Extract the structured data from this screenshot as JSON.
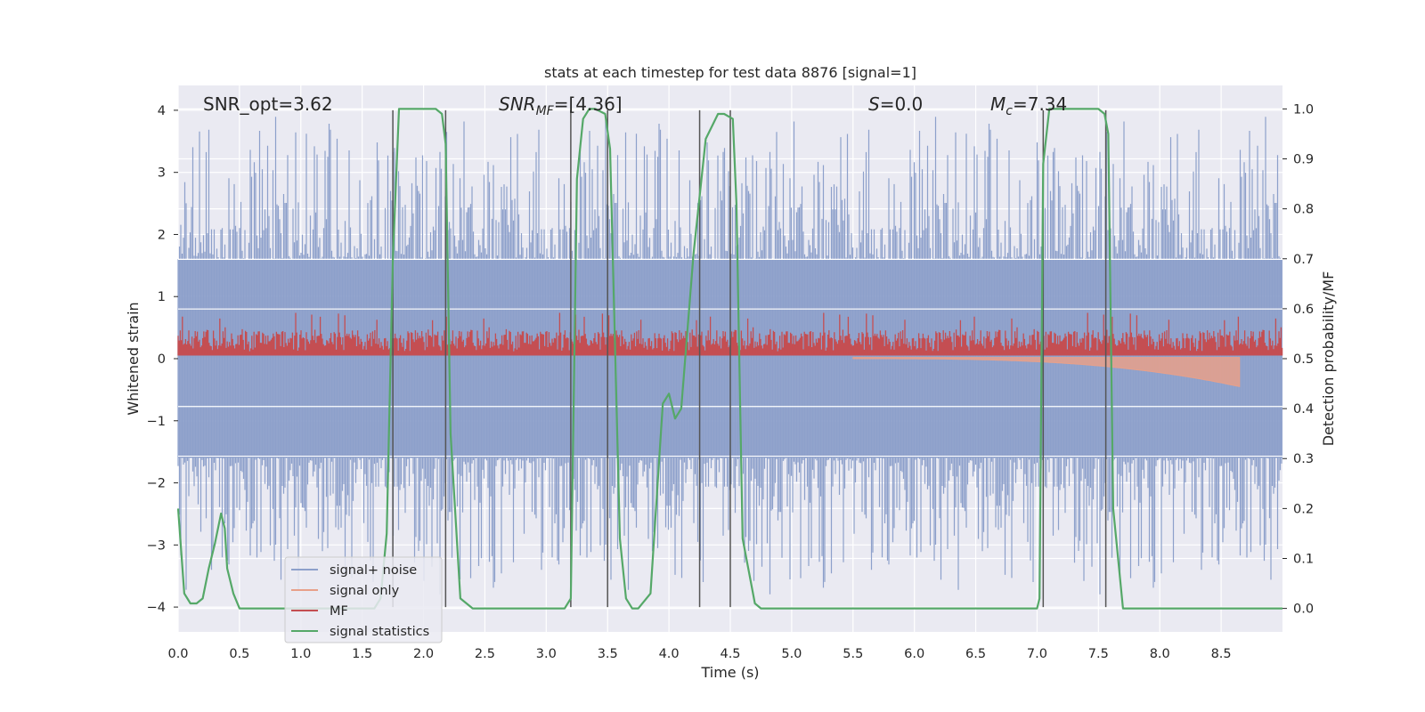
{
  "chart_data": {
    "type": "line",
    "title": "stats at each timestep for test data 8876 [signal=1]",
    "xlabel": "Time (s)",
    "ylabel_left": "Whitened strain",
    "ylabel_right": "Detection probability/MF",
    "xlim": [
      0.0,
      9.0
    ],
    "ylim_left": [
      -4.4,
      4.4
    ],
    "ylim_right": [
      -0.047,
      1.047
    ],
    "x_ticks": [
      0.0,
      0.5,
      1.0,
      1.5,
      2.0,
      2.5,
      3.0,
      3.5,
      4.0,
      4.5,
      5.0,
      5.5,
      6.0,
      6.5,
      7.0,
      7.5,
      8.0,
      8.5
    ],
    "x_tick_labels": [
      "0.0",
      "0.5",
      "1.0",
      "1.5",
      "2.0",
      "2.5",
      "3.0",
      "3.5",
      "4.0",
      "4.5",
      "5.0",
      "5.5",
      "6.0",
      "6.5",
      "7.0",
      "7.5",
      "8.0",
      "8.5"
    ],
    "y_left_ticks": [
      -4,
      -3,
      -2,
      -1,
      0,
      1,
      2,
      3,
      4
    ],
    "y_left_tick_labels": [
      "−4",
      "−3",
      "−2",
      "−1",
      "0",
      "1",
      "2",
      "3",
      "4"
    ],
    "y_right_ticks": [
      0.0,
      0.1,
      0.2,
      0.3,
      0.4,
      0.5,
      0.6,
      0.7,
      0.8,
      0.9,
      1.0
    ],
    "y_right_tick_labels": [
      "0.0",
      "0.1",
      "0.2",
      "0.3",
      "0.4",
      "0.5",
      "0.6",
      "0.7",
      "0.8",
      "0.9",
      "1.0"
    ],
    "grid": true,
    "legend_position": "lower-left",
    "annotations": {
      "snr_opt": "SNR_opt=3.62",
      "snr_mf_prefix": "SNR",
      "snr_mf_sub": "MF",
      "snr_mf_value": "=[4.36]",
      "s_prefix": "S",
      "s_value": "=0.0",
      "mc_prefix": "M",
      "mc_sub": "c",
      "mc_value": "=7.34"
    },
    "series": [
      {
        "name": "signal+ noise",
        "color": "#8da0cb",
        "description": "noise band approx ±1.6 with spikes to ±4"
      },
      {
        "name": "signal only",
        "color": "#e8a08a",
        "chirp_start": 5.5,
        "chirp_end": 8.65,
        "max_amplitude": -0.45
      },
      {
        "name": "MF",
        "color": "#c44e52",
        "baseline_range": [
          0.05,
          0.55
        ]
      },
      {
        "name": "signal statistics",
        "color": "#55a868",
        "x": [
          0.0,
          0.05,
          0.1,
          0.15,
          0.2,
          0.25,
          0.3,
          0.35,
          0.38,
          0.4,
          0.45,
          0.5,
          1.6,
          1.65,
          1.7,
          1.75,
          1.8,
          2.1,
          2.15,
          2.18,
          2.22,
          2.3,
          2.4,
          3.15,
          3.2,
          3.25,
          3.3,
          3.35,
          3.4,
          3.48,
          3.52,
          3.6,
          3.65,
          3.7,
          3.75,
          3.85,
          3.95,
          4.0,
          4.05,
          4.1,
          4.2,
          4.3,
          4.4,
          4.45,
          4.52,
          4.55,
          4.6,
          4.7,
          4.75,
          7.0,
          7.02,
          7.05,
          7.1,
          7.15,
          7.5,
          7.55,
          7.58,
          7.62,
          7.7,
          9.0
        ],
        "y": [
          0.2,
          0.03,
          0.01,
          0.01,
          0.02,
          0.08,
          0.13,
          0.19,
          0.16,
          0.08,
          0.03,
          0.0,
          0.0,
          0.02,
          0.15,
          0.7,
          1.0,
          1.0,
          0.99,
          0.93,
          0.35,
          0.02,
          0.0,
          0.0,
          0.02,
          0.86,
          0.98,
          1.0,
          1.0,
          0.99,
          0.92,
          0.14,
          0.02,
          0.0,
          0.0,
          0.03,
          0.41,
          0.43,
          0.38,
          0.4,
          0.71,
          0.94,
          0.99,
          0.99,
          0.98,
          0.81,
          0.14,
          0.01,
          0.0,
          0.0,
          0.02,
          0.89,
          1.0,
          1.0,
          1.0,
          0.99,
          0.95,
          0.2,
          0.0,
          0.0
        ]
      }
    ],
    "vertical_lines_x": [
      1.75,
      2.18,
      3.2,
      3.5,
      4.25,
      4.5,
      7.05,
      7.56
    ],
    "vertical_lines_top": 4.0,
    "vertical_lines_bottom": -4.0
  }
}
